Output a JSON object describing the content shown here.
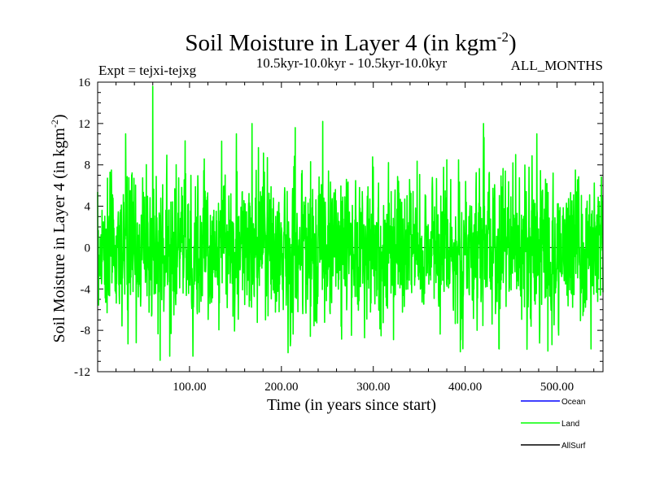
{
  "chart_data": {
    "type": "line",
    "title": "Soil Moisture in Layer 4 (in kgm",
    "title_sup": "-2",
    "title_end": ")",
    "subtitle_left": "Expt = tejxi-tejxg",
    "subtitle_center": "10.5kyr-10.0kyr - 10.5kyr-10.0kyr",
    "subtitle_right": "ALL_MONTHS",
    "xlabel": "Time (in years since start)",
    "ylabel": "Soil Moisture in Layer 4 (in kgm",
    "ylabel_sup": "-2",
    "ylabel_end": ")",
    "xlim": [
      0,
      550
    ],
    "ylim": [
      -12,
      16
    ],
    "x_ticks": [
      {
        "value": 100,
        "label": "100.00"
      },
      {
        "value": 200,
        "label": "200.00"
      },
      {
        "value": 300,
        "label": "300.00"
      },
      {
        "value": 400,
        "label": "400.00"
      },
      {
        "value": 500,
        "label": "500.00"
      }
    ],
    "y_ticks": [
      {
        "value": 16,
        "label": "16"
      },
      {
        "value": 12,
        "label": "12"
      },
      {
        "value": 8,
        "label": "8"
      },
      {
        "value": 4,
        "label": "4"
      },
      {
        "value": 0,
        "label": "0"
      },
      {
        "value": -4,
        "label": "-4"
      },
      {
        "value": -8,
        "label": "-8"
      },
      {
        "value": -12,
        "label": "-12"
      }
    ],
    "legend": [
      {
        "name": "Ocean",
        "color": "#0000ff"
      },
      {
        "name": "Land",
        "color": "#00ff00"
      },
      {
        "name": "AllSurf",
        "color": "#000000"
      }
    ],
    "series": [
      {
        "name": "Land",
        "color": "#00ff00",
        "x_start": 0,
        "x_step": 0.25,
        "amplitude_sd": 3.3,
        "peaks": [
          {
            "x": 60,
            "y": 15.6
          },
          {
            "x": 68,
            "y": -10.9
          },
          {
            "x": 135,
            "y": 10.3
          },
          {
            "x": 168,
            "y": 12.0
          },
          {
            "x": 215,
            "y": 11.6
          },
          {
            "x": 245,
            "y": 12.2
          },
          {
            "x": 420,
            "y": 12.0
          },
          {
            "x": 33,
            "y": -9.3
          },
          {
            "x": 15,
            "y": 7.5
          },
          {
            "x": 42,
            "y": -9.2
          },
          {
            "x": 80,
            "y": -8.3
          },
          {
            "x": 265,
            "y": -7.6
          },
          {
            "x": 322,
            "y": -8.9
          },
          {
            "x": 490,
            "y": -10.0
          },
          {
            "x": 537,
            "y": -9.8
          },
          {
            "x": 520,
            "y": 7.5
          },
          {
            "x": 455,
            "y": 9.0
          },
          {
            "x": 380,
            "y": 8.5
          },
          {
            "x": 300,
            "y": 7.8
          }
        ]
      }
    ]
  }
}
